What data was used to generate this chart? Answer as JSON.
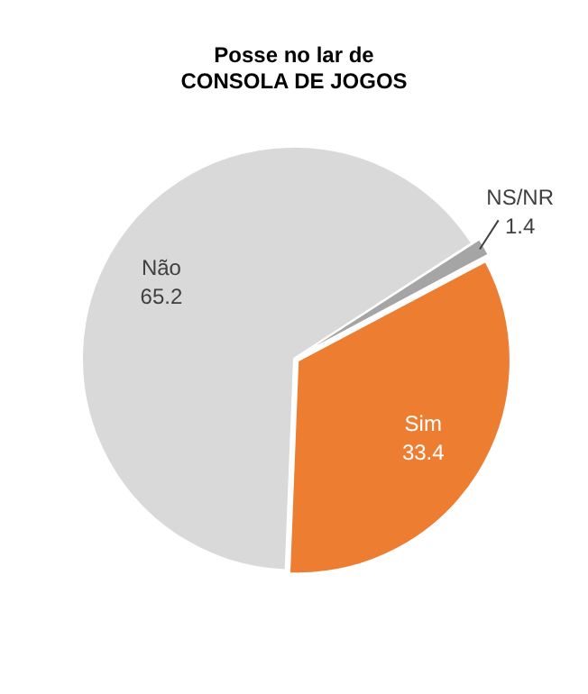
{
  "chart_data": {
    "type": "pie",
    "title": "Posse no lar de\nCONSOLA DE JOGOS",
    "categories": [
      "NS/NR",
      "Sim",
      "Não"
    ],
    "values": [
      1.4,
      33.4,
      65.2
    ],
    "colors": [
      "#a5a5a5",
      "#ed7d31",
      "#d9d9d9"
    ],
    "data_labels": true,
    "legend": false
  }
}
